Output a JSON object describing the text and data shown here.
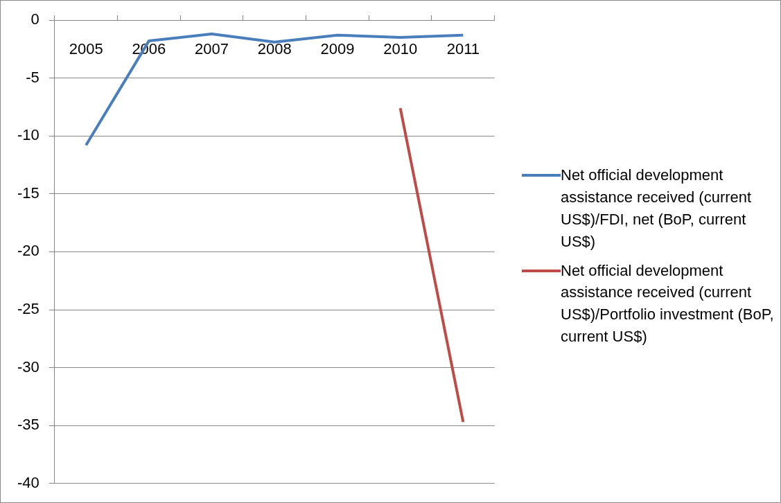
{
  "chart_data": {
    "type": "line",
    "categories": [
      "2005",
      "2006",
      "2007",
      "2008",
      "2009",
      "2010",
      "2011"
    ],
    "series": [
      {
        "name": "Net official development assistance received (current US$)/FDI, net (BoP, current US$)",
        "color": "#4a7ebb",
        "values": [
          -10.8,
          -1.8,
          -1.2,
          -1.9,
          -1.3,
          -1.5,
          -1.3
        ]
      },
      {
        "name": "Net official development assistance received (current US$)/Portfolio investment (BoP, current US$)",
        "color": "#be4b48",
        "values": [
          null,
          null,
          null,
          null,
          null,
          -7.6,
          -34.7
        ]
      }
    ],
    "ylim": [
      -40,
      0
    ],
    "yticks": [
      -40,
      -35,
      -30,
      -25,
      -20,
      -15,
      -10,
      -5,
      0
    ],
    "grid": "y",
    "legend": "right",
    "marker": "none",
    "line_style": "solid"
  }
}
